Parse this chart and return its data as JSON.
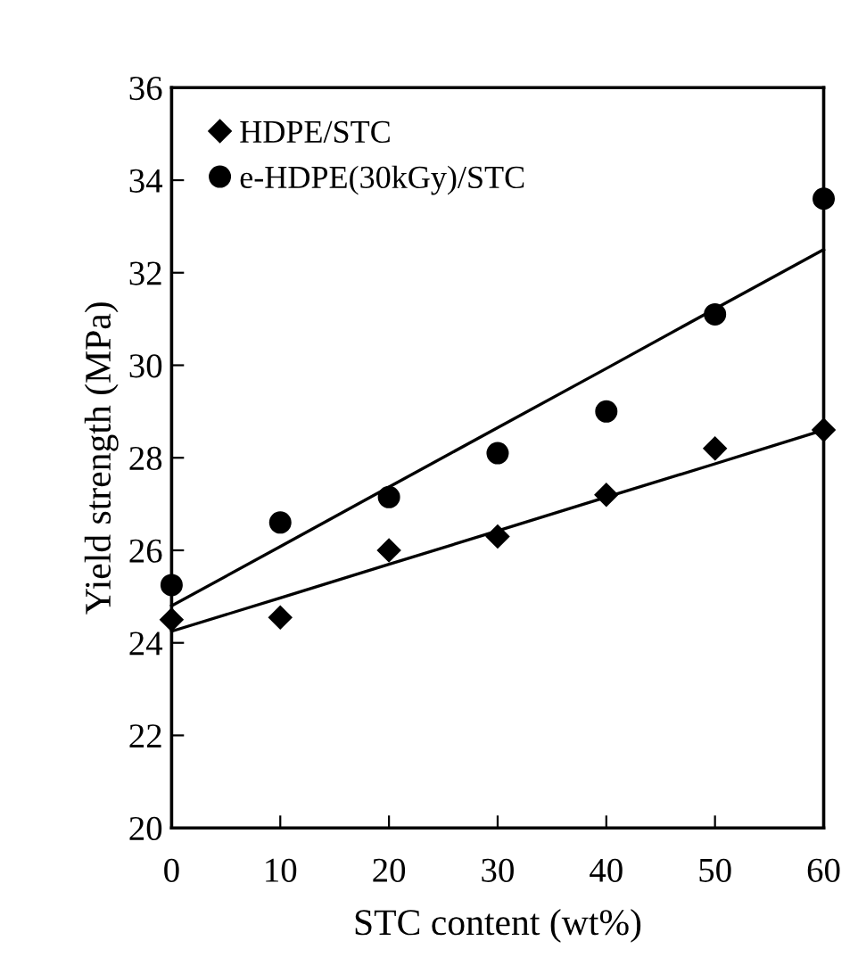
{
  "chart_data": {
    "type": "scatter",
    "xlabel": "STC content (wt%)",
    "ylabel": "Yield strength (MPa)",
    "x": [
      0,
      10,
      20,
      30,
      40,
      50,
      60
    ],
    "series": [
      {
        "name": "HDPE/STC",
        "color": "#000000",
        "marker": "diamond",
        "values": [
          24.5,
          24.55,
          26.0,
          26.3,
          27.2,
          28.2,
          28.6
        ]
      },
      {
        "name": "e-HDPE(30kGy)/STC",
        "color": "#000000",
        "marker": "circle",
        "values": [
          25.25,
          26.6,
          27.15,
          28.1,
          29.0,
          31.1,
          33.6
        ]
      },
      {
        "type": "line",
        "color": "#000000",
        "marker": "none",
        "values": [
          24.25,
          24.97,
          25.7,
          26.42,
          27.15,
          27.87,
          28.6
        ]
      },
      {
        "type": "line",
        "color": "#000000",
        "marker": "none",
        "values": [
          24.8,
          26.08,
          27.37,
          28.65,
          29.93,
          31.22,
          32.5
        ]
      }
    ],
    "xlim": [
      0,
      60
    ],
    "xticks": [
      0,
      10,
      20,
      30,
      40,
      50,
      60
    ],
    "ylim": [
      20,
      36
    ],
    "yticks": [
      20,
      22,
      24,
      26,
      28,
      30,
      32,
      34,
      36
    ],
    "grid": false,
    "legend": "top left"
  }
}
